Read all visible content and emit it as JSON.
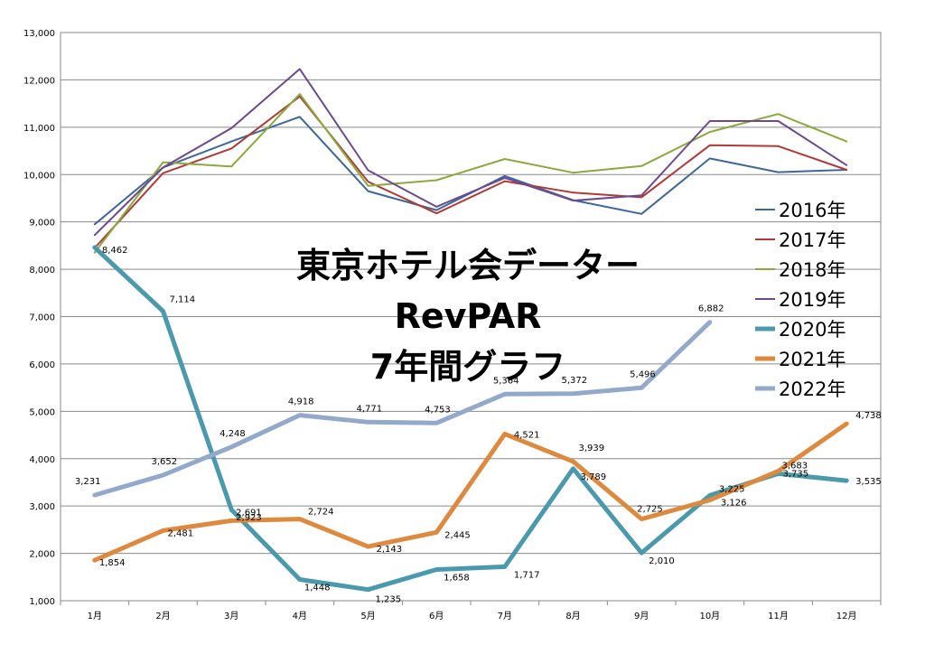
{
  "chart_data": {
    "type": "line",
    "title_lines": [
      "東京ホテル会データー",
      "RevPAR",
      "7年間グラフ"
    ],
    "categories": [
      "1月",
      "2月",
      "3月",
      "4月",
      "5月",
      "6月",
      "7月",
      "8月",
      "9月",
      "10月",
      "11月",
      "12月"
    ],
    "ylim": [
      1000,
      13000
    ],
    "yticks": [
      "1,000",
      "2,000",
      "3,000",
      "4,000",
      "5,000",
      "6,000",
      "7,000",
      "8,000",
      "9,000",
      "10,000",
      "11,000",
      "12,000",
      "13,000"
    ],
    "grid": true,
    "legend_position": "right",
    "series": [
      {
        "name": "2016年",
        "color": "#3d6899",
        "values": [
          8950,
          10150,
          10700,
          11220,
          9650,
          9250,
          9970,
          9460,
          9170,
          10340,
          10050,
          10100
        ]
      },
      {
        "name": "2017年",
        "color": "#b03a36",
        "values": [
          8450,
          10030,
          10550,
          11650,
          9850,
          9180,
          9860,
          9620,
          9520,
          10620,
          10600,
          10100
        ]
      },
      {
        "name": "2018年",
        "color": "#8aaa3e",
        "values": [
          8350,
          10260,
          10170,
          11700,
          9760,
          9880,
          10330,
          10040,
          10180,
          10900,
          11280,
          10700
        ]
      },
      {
        "name": "2019年",
        "color": "#6b4a8e",
        "values": [
          8720,
          10150,
          10980,
          12230,
          10090,
          9320,
          9930,
          9450,
          9560,
          11130,
          11130,
          10200
        ]
      },
      {
        "name": "2020年",
        "color": "#4a99ad",
        "values": [
          8462,
          7114,
          2923,
          1448,
          1235,
          1658,
          1717,
          3789,
          2010,
          3225,
          3683,
          3535
        ],
        "labels": [
          "8,462",
          "7,114",
          "2,923",
          "1,448",
          "1,235",
          "1,658",
          "1,717",
          "3,789",
          "2,010",
          "3,225",
          "3,683",
          "3,535"
        ]
      },
      {
        "name": "2021年",
        "color": "#de8a3e",
        "values": [
          1854,
          2481,
          2691,
          2724,
          2143,
          2445,
          4521,
          3939,
          2725,
          3126,
          3735,
          4738
        ],
        "labels": [
          "1,854",
          "2,481",
          "2,691",
          "2,724",
          "2,143",
          "2,445",
          "4,521",
          "3,939",
          "2,725",
          "3,126",
          "3,735",
          "4,738"
        ]
      },
      {
        "name": "2022年",
        "color": "#93a9cc",
        "values": [
          3231,
          3652,
          4248,
          4918,
          4771,
          4753,
          5364,
          5372,
          5496,
          6882,
          null,
          null
        ],
        "labels": [
          "3,231",
          "3,652",
          "4,248",
          "4,918",
          "4,771",
          "4,753",
          "5,364",
          "5,372",
          "5,496",
          "6,882",
          "",
          ""
        ]
      }
    ]
  }
}
